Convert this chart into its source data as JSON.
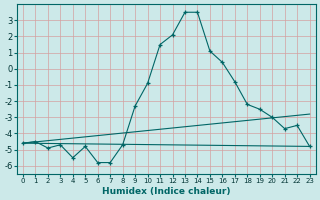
{
  "xlabel": "Humidex (Indice chaleur)",
  "background_color": "#cce9e9",
  "grid_color": "#b0d4d4",
  "line_color": "#006666",
  "xlim": [
    -0.5,
    23.5
  ],
  "ylim": [
    -6.5,
    4.0
  ],
  "xticks": [
    0,
    1,
    2,
    3,
    4,
    5,
    6,
    7,
    8,
    9,
    10,
    11,
    12,
    13,
    14,
    15,
    16,
    17,
    18,
    19,
    20,
    21,
    22,
    23
  ],
  "yticks": [
    -6,
    -5,
    -4,
    -3,
    -2,
    -1,
    0,
    1,
    2,
    3
  ],
  "main_x": [
    0,
    1,
    2,
    3,
    4,
    5,
    6,
    7,
    8,
    9,
    10,
    11,
    12,
    13,
    14,
    15,
    16,
    17,
    18,
    19,
    20,
    21,
    22,
    23
  ],
  "main_y": [
    -4.6,
    -4.5,
    -4.9,
    -4.7,
    -5.5,
    -4.8,
    -5.8,
    -5.8,
    -4.7,
    -2.3,
    -0.9,
    1.5,
    2.1,
    3.5,
    3.5,
    1.1,
    0.4,
    -0.8,
    -2.2,
    -2.5,
    -3.0,
    -3.7,
    -3.5,
    -4.8
  ],
  "line1_x": [
    0,
    23
  ],
  "line1_y": [
    -4.6,
    -4.8
  ],
  "line2_x": [
    0,
    23
  ],
  "line2_y": [
    -4.6,
    -2.8
  ]
}
